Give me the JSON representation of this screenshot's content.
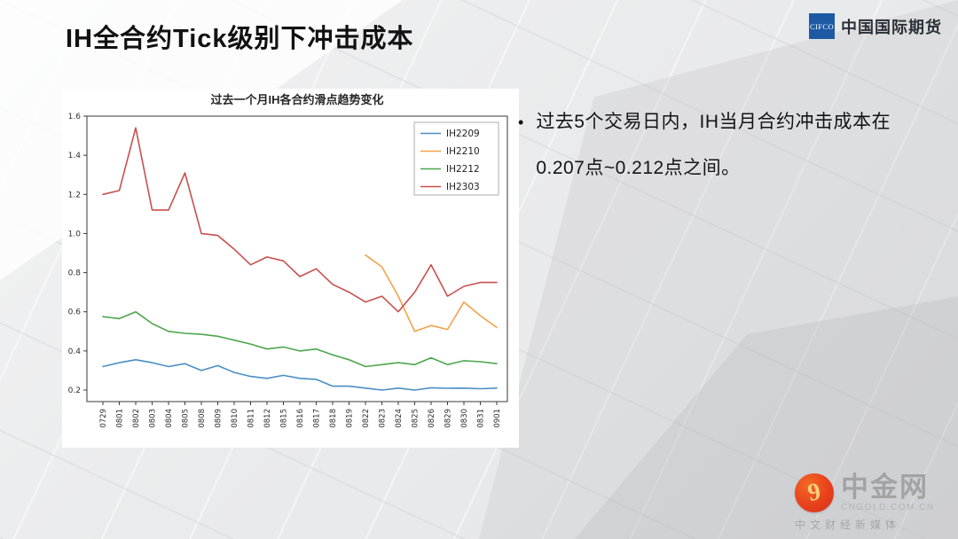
{
  "slide": {
    "title": "IH全合约Tick级别下冲击成本",
    "bullet_marker": "•",
    "bullet": "过去5个交易日内，IH当月合约冲击成本在0.207点~0.212点之间。"
  },
  "header_logo": {
    "badge": "CIFCO",
    "name": "中国国际期货"
  },
  "footer_logo": {
    "swirl_glyph": "9",
    "name": "中金网",
    "domain": "CNGOLD.COM.CN",
    "tagline": "中文财经新媒体"
  },
  "chart_data": {
    "type": "line",
    "title": "过去一个月IH各合约滑点趋势变化",
    "xlabel": "",
    "ylabel": "",
    "grid": false,
    "legend_position": "upper right",
    "ylim": [
      0.14,
      1.6
    ],
    "yticks": [
      0.2,
      0.4,
      0.6,
      0.8,
      1.0,
      1.2,
      1.4,
      1.6
    ],
    "categories": [
      "0729",
      "0801",
      "0802",
      "0803",
      "0804",
      "0805",
      "0808",
      "0809",
      "0810",
      "0811",
      "0812",
      "0815",
      "0816",
      "0817",
      "0818",
      "0819",
      "0822",
      "0823",
      "0824",
      "0825",
      "0826",
      "0829",
      "0830",
      "0831",
      "0901"
    ],
    "series": [
      {
        "name": "IH2209",
        "color": "#4a8fc2",
        "start_index": 0,
        "values": [
          0.32,
          0.34,
          0.355,
          0.34,
          0.32,
          0.335,
          0.3,
          0.325,
          0.29,
          0.27,
          0.26,
          0.275,
          0.26,
          0.255,
          0.22,
          0.22,
          0.21,
          0.2,
          0.21,
          0.2,
          0.212,
          0.209,
          0.21,
          0.207,
          0.21
        ]
      },
      {
        "name": "IH2210",
        "color": "#f2a249",
        "start_index": 16,
        "values": [
          0.89,
          0.83,
          0.68,
          0.5,
          0.53,
          0.51,
          0.65,
          0.58,
          0.52
        ]
      },
      {
        "name": "IH2212",
        "color": "#4da64d",
        "start_index": 0,
        "values": [
          0.575,
          0.565,
          0.6,
          0.54,
          0.5,
          0.49,
          0.485,
          0.475,
          0.455,
          0.435,
          0.41,
          0.42,
          0.4,
          0.41,
          0.38,
          0.355,
          0.32,
          0.33,
          0.34,
          0.33,
          0.365,
          0.33,
          0.35,
          0.345,
          0.335
        ]
      },
      {
        "name": "IH2303",
        "color": "#c8504d",
        "start_index": 0,
        "values": [
          1.2,
          1.22,
          1.54,
          1.12,
          1.12,
          1.31,
          1.0,
          0.99,
          0.92,
          0.84,
          0.88,
          0.86,
          0.78,
          0.82,
          0.74,
          0.7,
          0.65,
          0.68,
          0.6,
          0.7,
          0.84,
          0.68,
          0.73,
          0.75,
          0.75
        ]
      }
    ]
  }
}
